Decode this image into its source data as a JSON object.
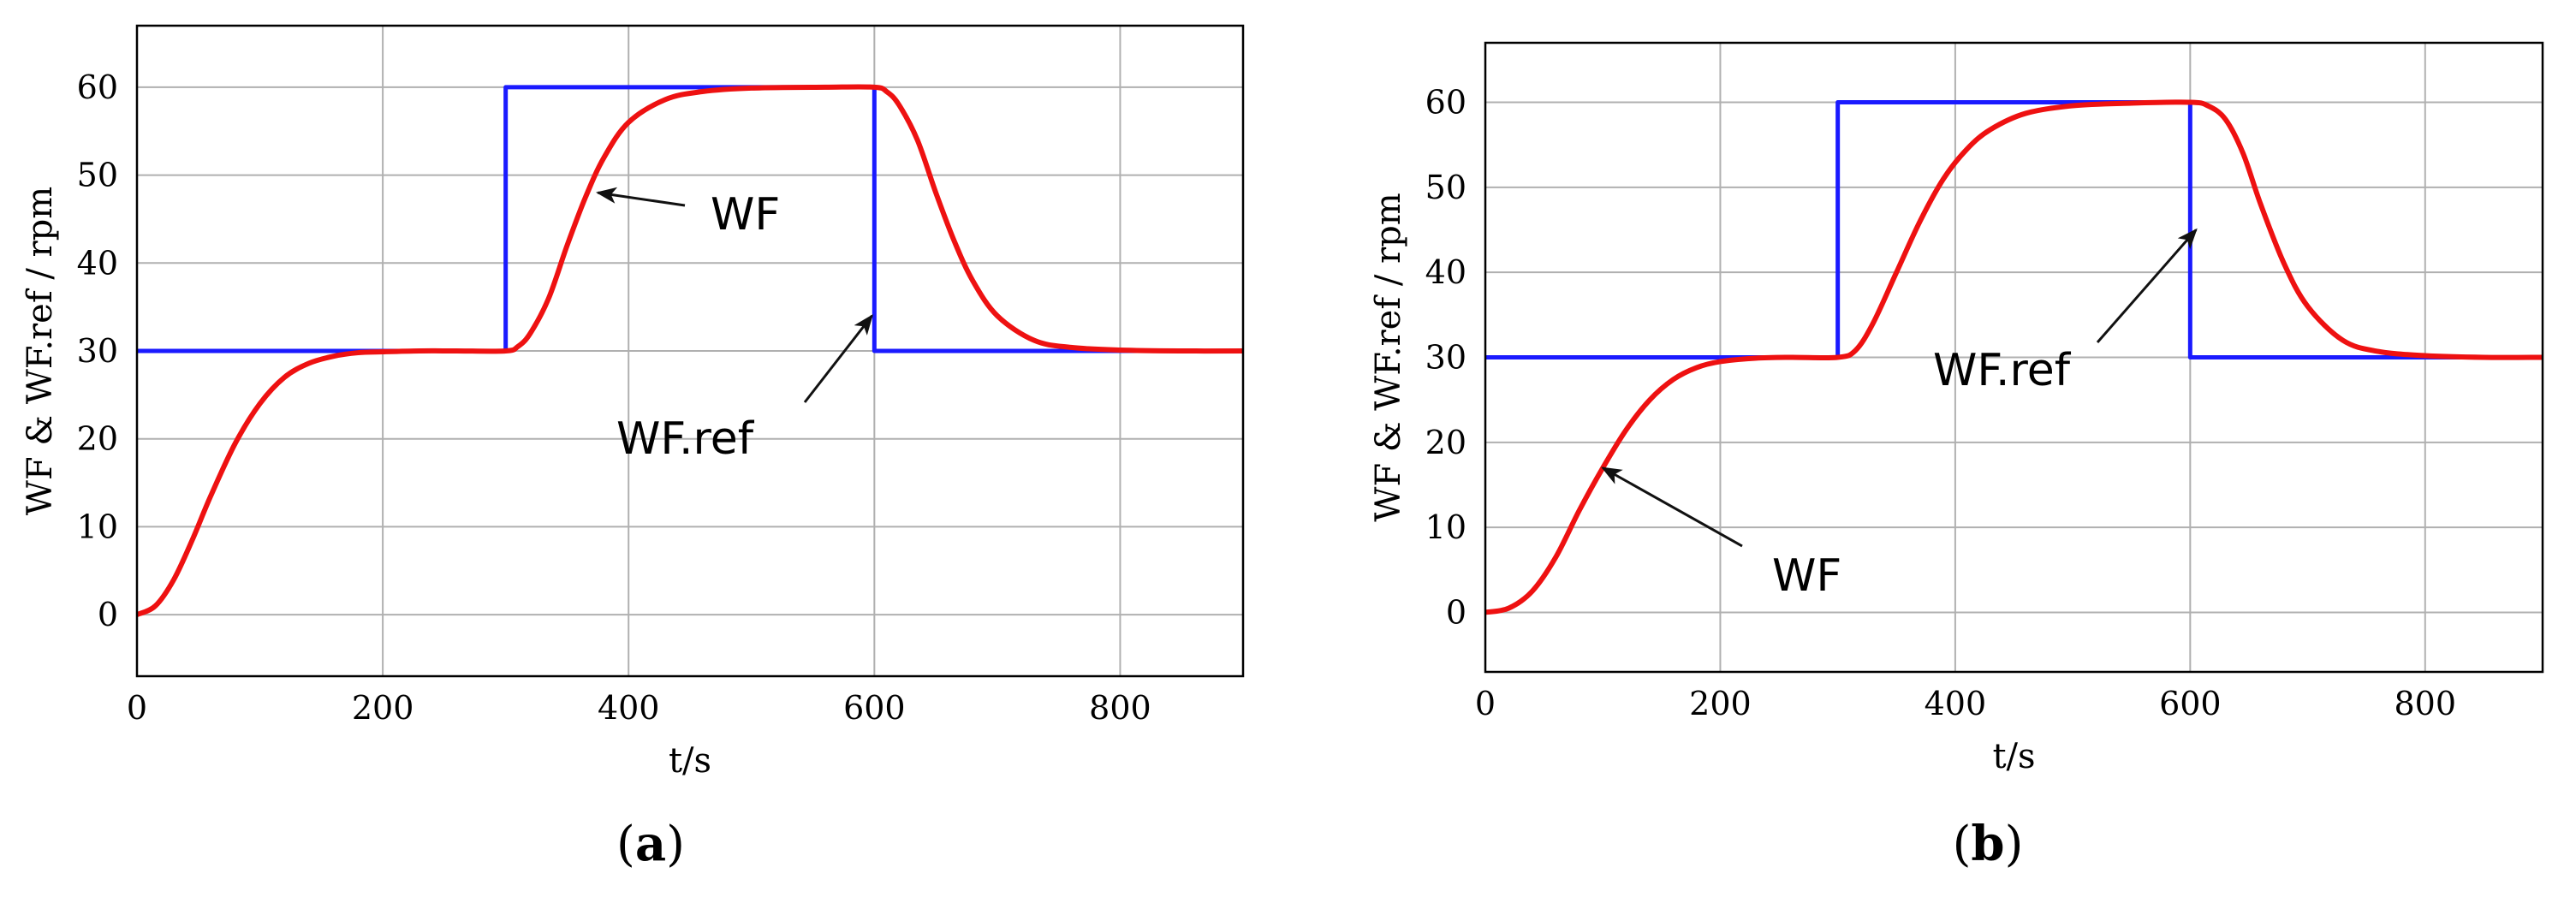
{
  "chart_data": [
    {
      "type": "line",
      "panel_label": "a",
      "xlabel": "t/s",
      "ylabel": "WF & WF.ref / rpm",
      "xlim": [
        0,
        900
      ],
      "ylim": [
        -7,
        67
      ],
      "xticks": [
        0,
        200,
        400,
        600,
        800
      ],
      "yticks": [
        0,
        10,
        20,
        30,
        40,
        50,
        60
      ],
      "grid": true,
      "annotations": [
        {
          "text": "WF",
          "target": [
            375,
            48
          ]
        },
        {
          "text": "WF.ref",
          "target": [
            598,
            34
          ]
        }
      ],
      "series": [
        {
          "name": "WF.ref",
          "color": "#1a1aff",
          "x": [
            0,
            300,
            300,
            600,
            600,
            900
          ],
          "y": [
            30,
            30,
            60,
            60,
            30,
            30
          ]
        },
        {
          "name": "WF",
          "color": "#ee1111",
          "x": [
            0,
            15,
            30,
            45,
            60,
            80,
            100,
            120,
            140,
            160,
            180,
            200,
            230,
            260,
            300,
            310,
            320,
            335,
            350,
            365,
            380,
            400,
            430,
            460,
            500,
            560,
            600,
            610,
            620,
            635,
            650,
            665,
            680,
            700,
            730,
            760,
            800,
            850,
            900
          ],
          "y": [
            0,
            1,
            4,
            8.5,
            13.5,
            19.5,
            24,
            27,
            28.6,
            29.4,
            29.8,
            29.9,
            30,
            30,
            30,
            30.5,
            32,
            36,
            42,
            47.5,
            52,
            56,
            58.6,
            59.5,
            59.9,
            60,
            60,
            59.5,
            58,
            54,
            48,
            42.5,
            38,
            34,
            31.2,
            30.4,
            30.1,
            30,
            30
          ]
        }
      ]
    },
    {
      "type": "line",
      "panel_label": "b",
      "xlabel": "t/s",
      "ylabel": "WF & WF.ref / rpm",
      "xlim": [
        0,
        900
      ],
      "ylim": [
        -7,
        67
      ],
      "xticks": [
        0,
        200,
        400,
        600,
        800
      ],
      "yticks": [
        0,
        10,
        20,
        30,
        40,
        50,
        60
      ],
      "grid": true,
      "annotations": [
        {
          "text": "WF",
          "target": [
            100,
            17
          ]
        },
        {
          "text": "WF.ref",
          "target": [
            605,
            45
          ]
        }
      ],
      "series": [
        {
          "name": "WF.ref",
          "color": "#1a1aff",
          "x": [
            0,
            300,
            300,
            600,
            600,
            900
          ],
          "y": [
            30,
            30,
            60,
            60,
            30,
            30
          ]
        },
        {
          "name": "WF",
          "color": "#ee1111",
          "x": [
            0,
            20,
            40,
            60,
            80,
            100,
            120,
            140,
            160,
            180,
            200,
            230,
            260,
            300,
            315,
            330,
            350,
            370,
            390,
            410,
            430,
            460,
            500,
            550,
            600,
            615,
            630,
            645,
            660,
            680,
            700,
            730,
            760,
            800,
            850,
            900
          ],
          "y": [
            0,
            0.5,
            2.5,
            6.5,
            12,
            17,
            21.5,
            25,
            27.4,
            28.8,
            29.5,
            29.9,
            30,
            30,
            30.8,
            34,
            40,
            46,
            51,
            54.5,
            56.8,
            58.7,
            59.6,
            59.9,
            60,
            59.6,
            58,
            54,
            48,
            41,
            36,
            32,
            30.7,
            30.2,
            30,
            30
          ]
        }
      ]
    }
  ]
}
